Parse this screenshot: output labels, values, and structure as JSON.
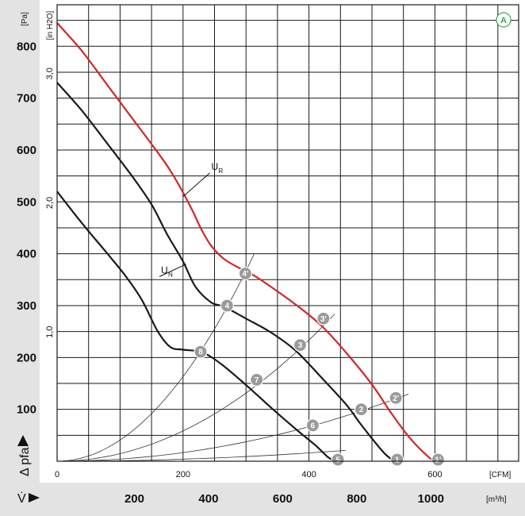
{
  "chart_data": {
    "type": "line",
    "title": "",
    "badge": "A",
    "y_axis": {
      "label": "Δ pfa",
      "unit": "[Pa]",
      "ticks": [
        "100",
        "200",
        "300",
        "400",
        "500",
        "600",
        "700",
        "800"
      ],
      "range": [
        0,
        880
      ]
    },
    "y_axis_secondary": {
      "unit": "[in H2O]",
      "ticks": [
        "1,0",
        "2,0",
        "3,0"
      ]
    },
    "x_axis_cfm": {
      "unit": "[CFM]",
      "ticks": [
        "0",
        "200",
        "400",
        "600"
      ],
      "range": [
        0,
        733
      ]
    },
    "x_axis_m3h": {
      "label": "V̇",
      "unit": "[m³/h]",
      "ticks": [
        "200",
        "400",
        "600",
        "800",
        "1000"
      ]
    },
    "series": [
      {
        "name": "U",
        "subscript": "R",
        "color": "#d42626",
        "points": [
          [
            0,
            845
          ],
          [
            40,
            790
          ],
          [
            80,
            725
          ],
          [
            120,
            660
          ],
          [
            160,
            595
          ],
          [
            180,
            560
          ],
          [
            200,
            518
          ],
          [
            215,
            483
          ],
          [
            230,
            445
          ],
          [
            245,
            415
          ],
          [
            265,
            390
          ],
          [
            290,
            372
          ],
          [
            310,
            360
          ],
          [
            340,
            336
          ],
          [
            380,
            301
          ],
          [
            420,
            261
          ],
          [
            460,
            208
          ],
          [
            500,
            148
          ],
          [
            530,
            94
          ],
          [
            560,
            45
          ],
          [
            590,
            8
          ],
          [
            602,
            0
          ]
        ]
      },
      {
        "name": "U",
        "subscript": "N",
        "color": "#1a1a1a",
        "points": [
          [
            0,
            730
          ],
          [
            40,
            675
          ],
          [
            80,
            612
          ],
          [
            120,
            548
          ],
          [
            150,
            495
          ],
          [
            175,
            437
          ],
          [
            200,
            385
          ],
          [
            220,
            336
          ],
          [
            245,
            306
          ],
          [
            265,
            298
          ],
          [
            300,
            275
          ],
          [
            340,
            248
          ],
          [
            380,
            212
          ],
          [
            420,
            161
          ],
          [
            460,
            108
          ],
          [
            480,
            75
          ],
          [
            500,
            44
          ],
          [
            520,
            15
          ],
          [
            535,
            0
          ]
        ]
      },
      {
        "name": "U",
        "subscript": "N",
        "color": "#1a1a1a",
        "points": [
          [
            0,
            520
          ],
          [
            40,
            458
          ],
          [
            80,
            400
          ],
          [
            110,
            355
          ],
          [
            135,
            310
          ],
          [
            160,
            250
          ],
          [
            180,
            220
          ],
          [
            200,
            215
          ],
          [
            230,
            210
          ],
          [
            260,
            188
          ],
          [
            300,
            147
          ],
          [
            340,
            103
          ],
          [
            380,
            61
          ],
          [
            410,
            31
          ],
          [
            430,
            8
          ],
          [
            442,
            0
          ]
        ]
      }
    ],
    "system_curves": [
      {
        "k": 0.00408,
        "x_end": 313
      },
      {
        "k": 0.00146,
        "x_end": 441
      },
      {
        "k": 0.000416,
        "x_end": 558
      },
      {
        "k": 0.0001,
        "x_end": 458
      }
    ],
    "operating_points": [
      {
        "label": "1",
        "x": 540,
        "y": 0
      },
      {
        "label": "1'",
        "x": 605,
        "y": 0
      },
      {
        "label": "2",
        "x": 483,
        "y": 100
      },
      {
        "label": "2'",
        "x": 538,
        "y": 122
      },
      {
        "label": "3",
        "x": 386,
        "y": 224
      },
      {
        "label": "3'",
        "x": 423,
        "y": 275
      },
      {
        "label": "4",
        "x": 270,
        "y": 300
      },
      {
        "label": "4'",
        "x": 299,
        "y": 362
      },
      {
        "label": "5",
        "x": 446,
        "y": 0
      },
      {
        "label": "6",
        "x": 406,
        "y": 69
      },
      {
        "label": "7",
        "x": 317,
        "y": 157
      },
      {
        "label": "8",
        "x": 228,
        "y": 211
      }
    ],
    "curve_labels": [
      {
        "text": "U",
        "sub": "R",
        "x": 250,
        "y": 565,
        "line_to": [
          200,
          510
        ]
      },
      {
        "text": "U",
        "sub": "N",
        "x": 170,
        "y": 365,
        "line_to": [
          205,
          380
        ]
      }
    ]
  }
}
